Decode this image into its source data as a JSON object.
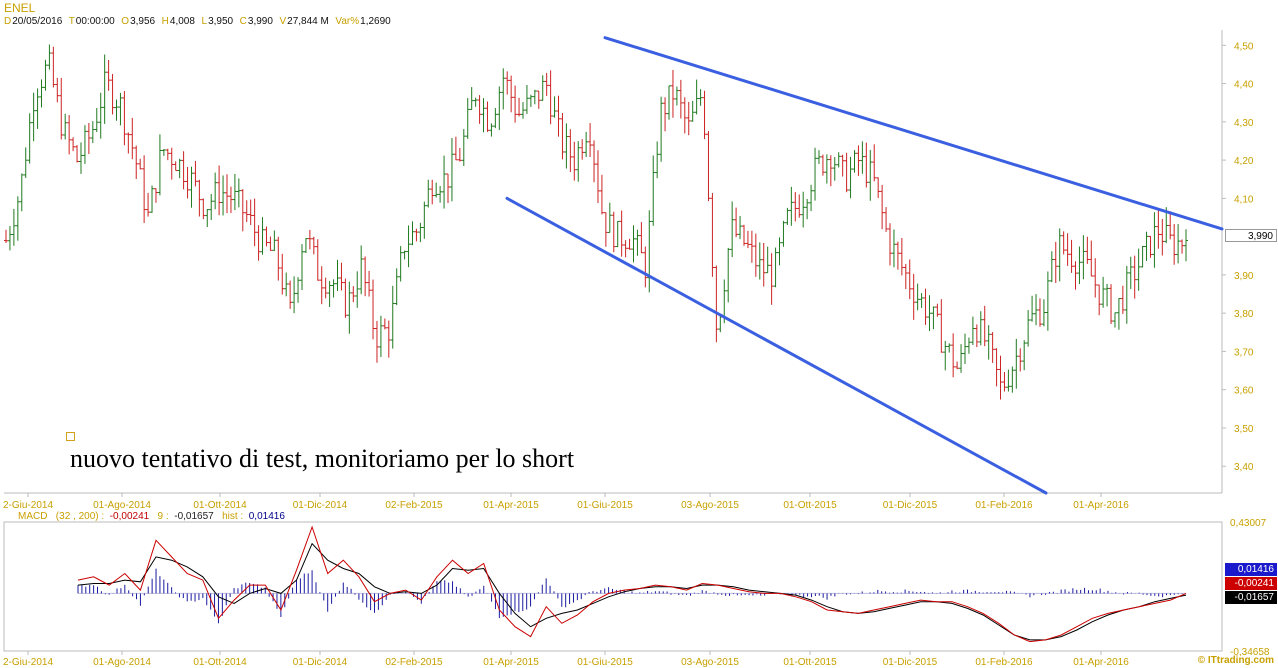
{
  "header": {
    "symbol": "ENEL",
    "date_key": "D",
    "date": "20/05/2016",
    "time_key": "T",
    "time": "00:00:00",
    "open_key": "O",
    "open": "3,956",
    "high_key": "H",
    "high": "4,008",
    "low_key": "L",
    "low": "3,950",
    "close_key": "C",
    "close": "3,990",
    "volume_key": "V",
    "volume": "27,844 M",
    "var_key": "Var%",
    "var": "1,2690"
  },
  "annotation": {
    "text": "nuovo tentativo di test, monitoriamo per lo short"
  },
  "macd_header": {
    "label": "MACD",
    "params": "(32 , 200) :",
    "macd": "-0,00241",
    "signal_key": "9 :",
    "signal": "-0,01657",
    "hist_key": "hist :",
    "hist": "0,01416"
  },
  "badges": {
    "last_price": "3,990",
    "hist": "0,01416",
    "macd": "-0,00241",
    "signal": "-0,01657"
  },
  "brand": "© ITtrading.com",
  "colors": {
    "up": "#1f7a1f",
    "down": "#cc2222",
    "trendline": "#3a5fe0",
    "axis_text": "#c8a000",
    "macd_line": "#cc0000",
    "signal_line": "#000000",
    "hist": "#1a1aa0"
  },
  "chart_data": [
    {
      "type": "bar",
      "subtype": "ohlc",
      "title": "ENEL",
      "y_ticks": [
        "4,50",
        "4,40",
        "4,30",
        "4,20",
        "4,10",
        "3,90",
        "3,80",
        "3,70",
        "3,60",
        "3,50",
        "3,40"
      ],
      "ylim": [
        3.33,
        4.54
      ],
      "x_ticks": [
        "2-Giu-2014",
        "01-Ago-2014",
        "01-Ott-2014",
        "01-Dic-2014",
        "02-Feb-2015",
        "01-Apr-2015",
        "01-Giu-2015",
        "03-Ago-2015",
        "01-Ott-2015",
        "01-Dic-2015",
        "01-Feb-2016",
        "01-Apr-2016"
      ],
      "last_close": 3.99,
      "trend": [
        3.99,
        4.12,
        4.38,
        4.45,
        4.28,
        4.2,
        4.27,
        4.4,
        4.35,
        4.22,
        4.05,
        4.23,
        4.2,
        4.15,
        4.08,
        4.12,
        4.1,
        4.05,
        3.98,
        3.95,
        3.8,
        4.02,
        3.9,
        3.88,
        3.82,
        3.92,
        3.74,
        3.76,
        3.98,
        4.02,
        4.15,
        4.15,
        4.22,
        4.38,
        4.3,
        4.42,
        4.32,
        4.35,
        4.4,
        4.25,
        4.2,
        4.3,
        4.05,
        4.0,
        4.0,
        3.92,
        4.32,
        4.38,
        4.28,
        4.38,
        3.75,
        4.02,
        3.98,
        3.92,
        3.9,
        4.05,
        4.1,
        4.18,
        4.22,
        4.15,
        4.2,
        4.15,
        4.0,
        3.92,
        3.85,
        3.8,
        3.72,
        3.65,
        3.78,
        3.72,
        3.6,
        3.68,
        3.78,
        3.82,
        3.98,
        3.95,
        3.92,
        3.85,
        3.8,
        3.88,
        3.95,
        4.02,
        3.98,
        3.99
      ],
      "trendlines": [
        {
          "from": [
            "01-Giu-2015",
            4.52
          ],
          "to": [
            "end",
            4.02
          ]
        },
        {
          "from": [
            "01-Apr-2015",
            4.1
          ],
          "to": [
            "01-Feb-2016",
            3.33
          ]
        }
      ]
    },
    {
      "type": "line",
      "title": "MACD (32 , 200)",
      "y_ticks": [
        "0,43007",
        "-0,34658"
      ],
      "ylim": [
        -0.34658,
        0.43007
      ],
      "x_ticks": [
        "2-Giu-2014",
        "01-Ago-2014",
        "01-Ott-2014",
        "01-Dic-2014",
        "02-Feb-2015",
        "01-Apr-2015",
        "01-Giu-2015",
        "03-Ago-2015",
        "01-Ott-2015",
        "01-Dic-2015",
        "01-Feb-2016",
        "01-Apr-2016"
      ],
      "series": [
        {
          "name": "MACD",
          "values": [
            0.08,
            0.1,
            0.05,
            0.12,
            0.02,
            0.32,
            0.22,
            0.12,
            0.08,
            -0.15,
            -0.04,
            0.05,
            0.05,
            -0.1,
            0.14,
            0.4,
            0.12,
            0.2,
            0.1,
            -0.05,
            0.0,
            0.02,
            -0.04,
            0.1,
            0.2,
            0.12,
            0.18,
            -0.1,
            -0.2,
            -0.26,
            -0.08,
            -0.18,
            -0.13,
            -0.05,
            0.0,
            0.02,
            0.03,
            0.05,
            0.04,
            0.02,
            0.06,
            0.05,
            0.03,
            0.01,
            0.0,
            0.0,
            -0.02,
            -0.05,
            -0.1,
            -0.11,
            -0.12,
            -0.1,
            -0.08,
            -0.06,
            -0.04,
            -0.05,
            -0.05,
            -0.08,
            -0.12,
            -0.18,
            -0.25,
            -0.29,
            -0.28,
            -0.25,
            -0.2,
            -0.15,
            -0.12,
            -0.1,
            -0.08,
            -0.06,
            -0.04,
            0.0
          ]
        },
        {
          "name": "Signal",
          "values": [
            0.05,
            0.06,
            0.06,
            0.08,
            0.07,
            0.22,
            0.2,
            0.16,
            0.1,
            -0.02,
            -0.06,
            0.0,
            0.03,
            0.0,
            0.08,
            0.3,
            0.2,
            0.15,
            0.12,
            0.04,
            0.0,
            0.01,
            0.0,
            0.05,
            0.15,
            0.14,
            0.15,
            0.0,
            -0.12,
            -0.2,
            -0.15,
            -0.12,
            -0.1,
            -0.06,
            -0.02,
            0.01,
            0.03,
            0.04,
            0.04,
            0.03,
            0.05,
            0.05,
            0.04,
            0.02,
            0.01,
            0.0,
            -0.01,
            -0.04,
            -0.08,
            -0.11,
            -0.12,
            -0.11,
            -0.09,
            -0.07,
            -0.05,
            -0.05,
            -0.06,
            -0.09,
            -0.13,
            -0.19,
            -0.25,
            -0.28,
            -0.28,
            -0.26,
            -0.22,
            -0.17,
            -0.13,
            -0.1,
            -0.08,
            -0.05,
            -0.03,
            -0.01
          ]
        }
      ]
    }
  ]
}
